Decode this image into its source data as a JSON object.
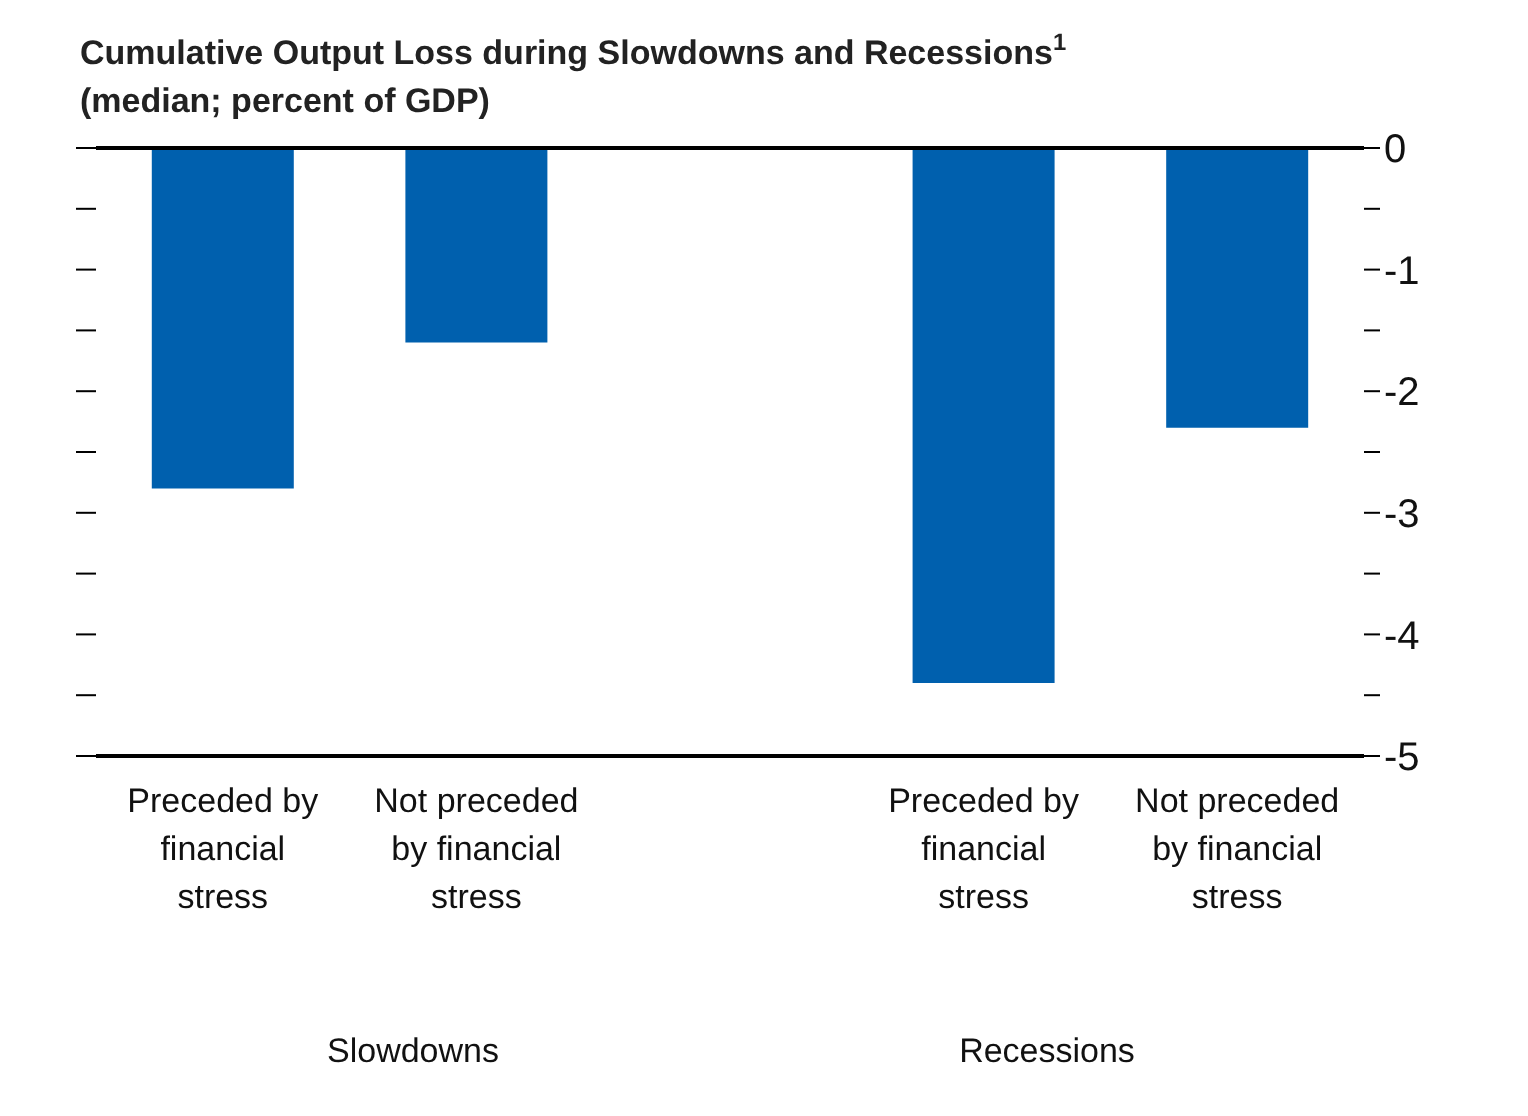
{
  "chart_data": {
    "type": "bar",
    "title": "Cumulative Output Loss during Slowdowns and Recessions$^{1}$",
    "subtitle": "(median; percent of GDP)",
    "categories": [
      "Preceded by financial stress",
      "Not preceded by financial stress",
      null,
      "Preceded by financial stress",
      "Not preceded by financial stress"
    ],
    "values": [
      -2.8,
      -1.6,
      null,
      -4.4,
      -2.3
    ],
    "color": "#0060ae",
    "ylim": [
      -5,
      0
    ],
    "yticks": [
      0,
      {
        "value": -0.5,
        "label": null
      },
      -1,
      {
        "value": -1.5,
        "label": null
      },
      -2,
      {
        "value": -2.5,
        "label": null
      },
      -3,
      {
        "value": -3.5,
        "label": null
      },
      -4,
      {
        "value": -4.5,
        "label": null
      },
      -5
    ],
    "ref_lines": [
      {
        "axis": "y",
        "value": 0
      }
    ],
    "annotations": [
      "Slowdowns",
      "Recessions"
    ],
    "grid": false
  }
}
